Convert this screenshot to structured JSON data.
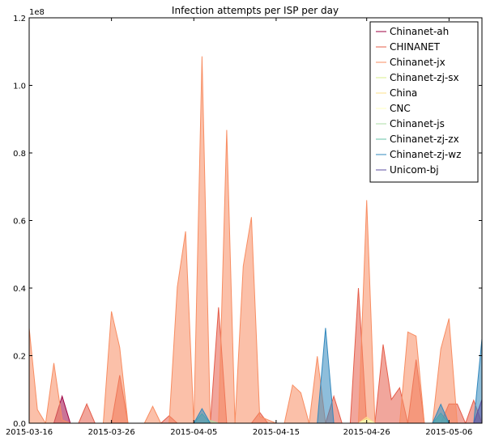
{
  "chart_data": {
    "type": "area",
    "title": "Infection attempts per ISP per day",
    "xlabel": "",
    "ylabel": "",
    "offset_label": "1e8",
    "x_start": "2015-03-16",
    "x_end": "2015-05-10",
    "x_ticks": [
      "2015-03-16",
      "2015-03-26",
      "2015-04-05",
      "2015-04-15",
      "2015-04-26",
      "2015-05-06"
    ],
    "ylim": [
      0,
      1.2
    ],
    "y_ticks": [
      "0.0",
      "0.2",
      "0.4",
      "0.6",
      "0.8",
      "1.0",
      "1.2"
    ],
    "grid": false,
    "legend_position": "top-right",
    "series": [
      {
        "name": "Chinanet-ah",
        "color": "#9e0142",
        "points": [
          [
            "2015-03-19",
            0
          ],
          [
            "2015-03-20",
            0.08
          ],
          [
            "2015-03-21",
            0
          ]
        ]
      },
      {
        "name": "CHINANET",
        "color": "#e55d4a",
        "points": [
          [
            "2015-03-22",
            0
          ],
          [
            "2015-03-23",
            0.057
          ],
          [
            "2015-03-24",
            0
          ],
          [
            "2015-03-26",
            0
          ],
          [
            "2015-03-27",
            0.142
          ],
          [
            "2015-03-28",
            0
          ],
          [
            "2015-04-01",
            0
          ],
          [
            "2015-04-02",
            0.022
          ],
          [
            "2015-04-03",
            0
          ],
          [
            "2015-04-07",
            0
          ],
          [
            "2015-04-08",
            0.343
          ],
          [
            "2015-04-09",
            0
          ],
          [
            "2015-04-12",
            0
          ],
          [
            "2015-04-13",
            0.032
          ],
          [
            "2015-04-14",
            0
          ],
          [
            "2015-04-21",
            0
          ],
          [
            "2015-04-22",
            0.08
          ],
          [
            "2015-04-23",
            0
          ],
          [
            "2015-04-24",
            0
          ],
          [
            "2015-04-25",
            0.4
          ],
          [
            "2015-04-26",
            0
          ],
          [
            "2015-04-27",
            0
          ],
          [
            "2015-04-28",
            0.233
          ],
          [
            "2015-04-29",
            0.07
          ],
          [
            "2015-04-30",
            0.105
          ],
          [
            "2015-05-01",
            0
          ],
          [
            "2015-05-02",
            0.188
          ],
          [
            "2015-05-03",
            0
          ],
          [
            "2015-05-05",
            0
          ],
          [
            "2015-05-06",
            0.057
          ],
          [
            "2015-05-07",
            0.057
          ],
          [
            "2015-05-08",
            0
          ],
          [
            "2015-05-09",
            0.068
          ],
          [
            "2015-05-10",
            0
          ],
          [
            "2015-05-10",
            0
          ],
          [
            "2015-05-11",
            0.118
          ],
          [
            "2015-05-12",
            0
          ]
        ]
      },
      {
        "name": "Chinanet-jx",
        "color": "#f88d62",
        "points": [
          [
            "2015-03-16",
            0.282
          ],
          [
            "2015-03-17",
            0.04
          ],
          [
            "2015-03-18",
            0
          ],
          [
            "2015-03-19",
            0.178
          ],
          [
            "2015-03-20",
            0.01
          ],
          [
            "2015-03-21",
            0
          ],
          [
            "2015-03-25",
            0
          ],
          [
            "2015-03-26",
            0.331
          ],
          [
            "2015-03-27",
            0.224
          ],
          [
            "2015-03-28",
            0
          ],
          [
            "2015-03-30",
            0
          ],
          [
            "2015-03-31",
            0.05
          ],
          [
            "2015-04-01",
            0
          ],
          [
            "2015-04-02",
            0
          ],
          [
            "2015-04-03",
            0.403
          ],
          [
            "2015-04-04",
            0.568
          ],
          [
            "2015-04-05",
            0
          ],
          [
            "2015-04-06",
            1.086
          ],
          [
            "2015-04-07",
            0
          ],
          [
            "2015-04-08",
            0
          ],
          [
            "2015-04-09",
            0.868
          ],
          [
            "2015-04-10",
            0
          ],
          [
            "2015-04-11",
            0.465
          ],
          [
            "2015-04-12",
            0.61
          ],
          [
            "2015-04-13",
            0.02
          ],
          [
            "2015-04-14",
            0.01
          ],
          [
            "2015-04-15",
            0
          ],
          [
            "2015-04-16",
            0
          ],
          [
            "2015-04-17",
            0.113
          ],
          [
            "2015-04-18",
            0.09
          ],
          [
            "2015-04-19",
            0
          ],
          [
            "2015-04-20",
            0.198
          ],
          [
            "2015-04-21",
            0
          ],
          [
            "2015-04-25",
            0
          ],
          [
            "2015-04-26",
            0.66
          ],
          [
            "2015-04-27",
            0
          ],
          [
            "2015-04-30",
            0
          ],
          [
            "2015-05-01",
            0.27
          ],
          [
            "2015-05-02",
            0.258
          ],
          [
            "2015-05-03",
            0
          ],
          [
            "2015-05-04",
            0
          ],
          [
            "2015-05-05",
            0.22
          ],
          [
            "2015-05-06",
            0.31
          ],
          [
            "2015-05-07",
            0
          ],
          [
            "2015-05-11",
            0
          ],
          [
            "2015-05-12",
            0.39
          ]
        ]
      },
      {
        "name": "Chinanet-zj-sx",
        "color": "#d9ef8b",
        "points": [
          [
            "2015-04-25",
            0
          ],
          [
            "2015-04-26",
            0.012
          ],
          [
            "2015-04-27",
            0
          ]
        ]
      },
      {
        "name": "China",
        "color": "#fee08b",
        "points": [
          [
            "2015-04-25",
            0
          ],
          [
            "2015-04-26",
            0.018
          ],
          [
            "2015-04-27",
            0
          ]
        ]
      },
      {
        "name": "CNC",
        "color": "#ffffbf",
        "points": [
          [
            "2015-04-25",
            0
          ],
          [
            "2015-04-26",
            0.01
          ],
          [
            "2015-04-27",
            0
          ]
        ]
      },
      {
        "name": "Chinanet-js",
        "color": "#abdda4",
        "points": [
          [
            "2015-04-06",
            0
          ],
          [
            "2015-04-07",
            0.008
          ],
          [
            "2015-04-08",
            0
          ],
          [
            "2015-05-04",
            0
          ],
          [
            "2015-05-05",
            0.02
          ],
          [
            "2015-05-06",
            0
          ]
        ]
      },
      {
        "name": "Chinanet-zj-zx",
        "color": "#66c2a5",
        "points": [
          [
            "2015-04-05",
            0
          ],
          [
            "2015-04-06",
            0.028
          ],
          [
            "2015-04-07",
            0
          ],
          [
            "2015-05-04",
            0
          ],
          [
            "2015-05-05",
            0.03
          ],
          [
            "2015-05-06",
            0
          ]
        ]
      },
      {
        "name": "Chinanet-zj-wz",
        "color": "#3288bd",
        "points": [
          [
            "2015-04-05",
            0
          ],
          [
            "2015-04-06",
            0.043
          ],
          [
            "2015-04-07",
            0
          ],
          [
            "2015-04-20",
            0
          ],
          [
            "2015-04-21",
            0.282
          ],
          [
            "2015-04-22",
            0
          ],
          [
            "2015-05-04",
            0
          ],
          [
            "2015-05-05",
            0.056
          ],
          [
            "2015-05-06",
            0
          ],
          [
            "2015-05-09",
            0
          ],
          [
            "2015-05-10",
            0.25
          ],
          [
            "2015-05-11",
            0
          ]
        ]
      },
      {
        "name": "Unicom-bj",
        "color": "#5e4fa2",
        "points": [
          [
            "2015-05-09",
            0
          ],
          [
            "2015-05-10",
            0.07
          ],
          [
            "2015-05-11",
            0
          ]
        ]
      }
    ]
  }
}
